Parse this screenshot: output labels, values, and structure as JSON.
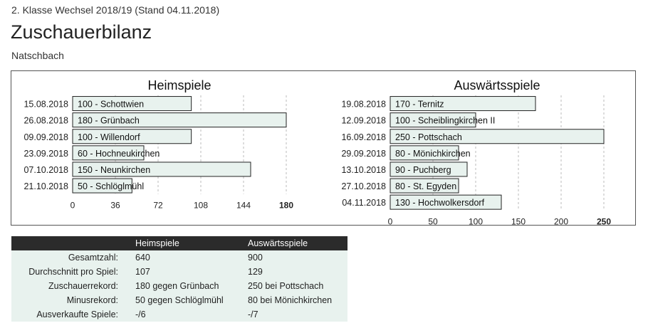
{
  "header": {
    "subtitle": "2. Klasse Wechsel 2018/19 (Stand 04.11.2018)",
    "title": "Zuschauerbilanz",
    "team": "Natschbach"
  },
  "colors": {
    "bar_fill": "#e8f2ee",
    "bar_stroke": "#222222",
    "grid": "#bbbbbb",
    "header_bg": "#2b2b2b"
  },
  "chart_data": [
    {
      "type": "bar",
      "orientation": "horizontal",
      "title": "Heimspiele",
      "categories": [
        "15.08.2018",
        "26.08.2018",
        "09.09.2018",
        "23.09.2018",
        "07.10.2018",
        "21.10.2018"
      ],
      "values": [
        100,
        180,
        100,
        60,
        150,
        50
      ],
      "bar_labels": [
        "100 - Schottwien",
        "180 - Grünbach",
        "100 - Willendorf",
        "60 - Hochneukirchen",
        "150 - Neunkirchen",
        "50 - Schlöglmühl"
      ],
      "xticks": [
        "0",
        "36",
        "72",
        "108",
        "144",
        "180"
      ],
      "xlim": [
        0,
        180
      ],
      "grid": true
    },
    {
      "type": "bar",
      "orientation": "horizontal",
      "title": "Auswärtsspiele",
      "categories": [
        "19.08.2018",
        "12.09.2018",
        "16.09.2018",
        "29.09.2018",
        "13.10.2018",
        "27.10.2018",
        "04.11.2018"
      ],
      "values": [
        170,
        100,
        250,
        80,
        90,
        80,
        130
      ],
      "bar_labels": [
        "170 - Ternitz",
        "100 - Scheiblingkirchen II",
        "250 - Pottschach",
        "80 - Mönichkirchen",
        "90 - Puchberg",
        "80 - St. Egyden",
        "130 - Hochwolkersdorf"
      ],
      "xticks": [
        "0",
        "50",
        "100",
        "150",
        "200",
        "250"
      ],
      "xlim": [
        0,
        250
      ],
      "grid": true
    }
  ],
  "stats": {
    "col_home": "Heimspiele",
    "col_away": "Auswärtsspiele",
    "rows": [
      {
        "label": "Gesamtzahl:",
        "home": "640",
        "away": "900"
      },
      {
        "label": "Durchschnitt pro Spiel:",
        "home": "107",
        "away": "129"
      },
      {
        "label": "Zuschauerrekord:",
        "home": "180 gegen Grünbach",
        "away": "250 bei Pottschach"
      },
      {
        "label": "Minusrekord:",
        "home": "50 gegen Schlöglmühl",
        "away": "80 bei Mönichkirchen"
      },
      {
        "label": "Ausverkaufte Spiele:",
        "home": "-/6",
        "away": "-/7"
      }
    ]
  }
}
